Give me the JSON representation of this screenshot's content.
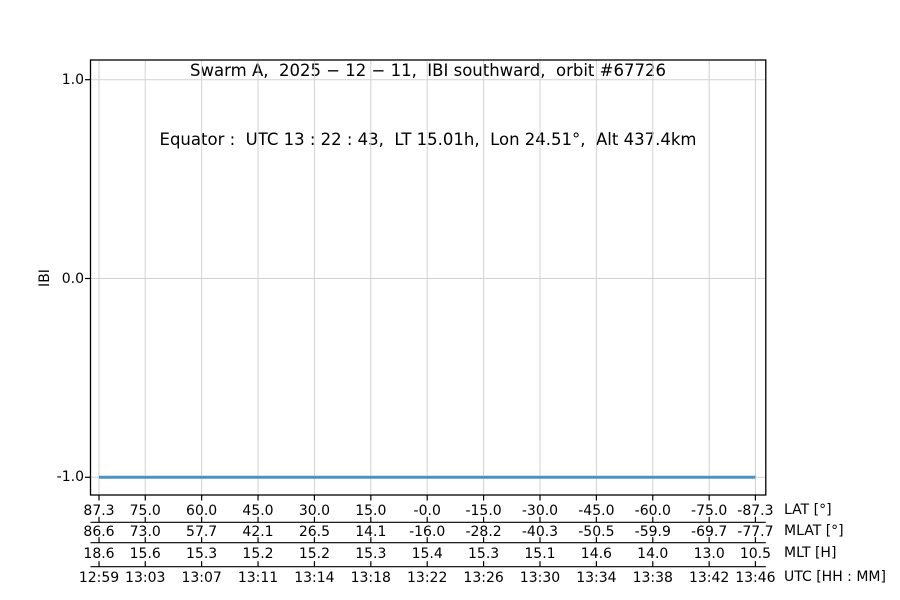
{
  "figure": {
    "title_line1": "Swarm A,  2025 − 12 − 11,  IBI southward,  orbit #67726",
    "title_line2": "Equator :  UTC 13 : 22 : 43,  LT 15.01h,  Lon 24.51°,  Alt 437.4km",
    "background": "#ffffff"
  },
  "chart_data": {
    "type": "line",
    "title": "Swarm A, 2025-12-11, IBI southward, orbit #67726",
    "subtitle": "Equator: UTC 13:22:43, LT 15.01h, Lon 24.51°, Alt 437.4km",
    "ylabel": "IBI",
    "ylim": [
      -1.09,
      1.09
    ],
    "grid": true,
    "legend": false,
    "y_tick_values": [
      1.0,
      0.0,
      -1.0
    ],
    "y_ticks": [
      "1.0",
      "0.0",
      "-1.0"
    ],
    "colors": {
      "line": "#4c93c4",
      "grid": "#d2d2d2",
      "axis": "#000000",
      "text": "#000000"
    },
    "series": [
      {
        "name": "IBI",
        "color": "#4c93c4",
        "y_constant": -1.0,
        "x_span_utc": [
          "12:59",
          "13:46"
        ],
        "description": "IBI flag constant at -1 for the whole southward orbit segment"
      }
    ],
    "x_tick_lat_deg": [
      87.3,
      75,
      60,
      45,
      30,
      15,
      0,
      -15,
      -30,
      -45,
      -60,
      -75,
      -87.3
    ],
    "x_axis_rows": [
      {
        "key": "lat",
        "label": "LAT [°]",
        "ticks": [
          "87.3",
          "75.0",
          "60.0",
          "45.0",
          "30.0",
          "15.0",
          "-0.0",
          "-15.0",
          "-30.0",
          "-45.0",
          "-60.0",
          "-75.0",
          "-87.3"
        ]
      },
      {
        "key": "mlat",
        "label": "MLAT [°]",
        "ticks": [
          "86.6",
          "73.0",
          "57.7",
          "42.1",
          "26.5",
          "14.1",
          "-16.0",
          "-28.2",
          "-40.3",
          "-50.5",
          "-59.9",
          "-69.7",
          "-77.7"
        ]
      },
      {
        "key": "mlt",
        "label": "MLT [H]",
        "ticks": [
          "18.6",
          "15.6",
          "15.3",
          "15.2",
          "15.2",
          "15.3",
          "15.4",
          "15.3",
          "15.1",
          "14.6",
          "14.0",
          "13.0",
          "10.5"
        ]
      },
      {
        "key": "utc",
        "label": "UTC [HH : MM]",
        "ticks": [
          "12:59",
          "13:03",
          "13:07",
          "13:11",
          "13:14",
          "13:18",
          "13:22",
          "13:26",
          "13:30",
          "13:34",
          "13:38",
          "13:42",
          "13:46"
        ]
      }
    ]
  }
}
